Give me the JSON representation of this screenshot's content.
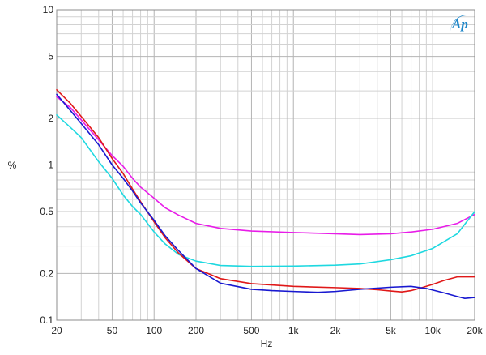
{
  "chart_data": {
    "type": "line",
    "title": "",
    "xlabel": "Hz",
    "ylabel": "%",
    "x_scale": "log",
    "y_scale": "log",
    "xlim": [
      20,
      20000
    ],
    "ylim": [
      0.1,
      10
    ],
    "x_ticks": [
      {
        "value": 20,
        "label": "20"
      },
      {
        "value": 50,
        "label": "50"
      },
      {
        "value": 100,
        "label": "100"
      },
      {
        "value": 200,
        "label": "200"
      },
      {
        "value": 500,
        "label": "500"
      },
      {
        "value": 1000,
        "label": "1k"
      },
      {
        "value": 2000,
        "label": "2k"
      },
      {
        "value": 5000,
        "label": "5k"
      },
      {
        "value": 10000,
        "label": "10k"
      },
      {
        "value": 20000,
        "label": "20k"
      }
    ],
    "y_ticks": [
      {
        "value": 0.1,
        "label": "0.1"
      },
      {
        "value": 0.2,
        "label": "0.2"
      },
      {
        "value": 0.5,
        "label": "0.5"
      },
      {
        "value": 1,
        "label": "1"
      },
      {
        "value": 2,
        "label": "2"
      },
      {
        "value": 5,
        "label": "5"
      },
      {
        "value": 10,
        "label": "10"
      }
    ],
    "grid": true,
    "legend": "none",
    "logo_text": "Ap",
    "series": [
      {
        "color": "#e81ce8",
        "points": [
          [
            20,
            2.75
          ],
          [
            25,
            2.35
          ],
          [
            30,
            1.95
          ],
          [
            40,
            1.45
          ],
          [
            50,
            1.15
          ],
          [
            60,
            0.98
          ],
          [
            70,
            0.82
          ],
          [
            80,
            0.72
          ],
          [
            100,
            0.61
          ],
          [
            120,
            0.53
          ],
          [
            150,
            0.475
          ],
          [
            200,
            0.42
          ],
          [
            300,
            0.39
          ],
          [
            500,
            0.375
          ],
          [
            1000,
            0.367
          ],
          [
            2000,
            0.36
          ],
          [
            3000,
            0.356
          ],
          [
            5000,
            0.36
          ],
          [
            7000,
            0.37
          ],
          [
            10000,
            0.385
          ],
          [
            15000,
            0.42
          ],
          [
            20000,
            0.48
          ]
        ]
      },
      {
        "color": "#1ed8e0",
        "points": [
          [
            20,
            2.1
          ],
          [
            25,
            1.75
          ],
          [
            30,
            1.5
          ],
          [
            40,
            1.05
          ],
          [
            50,
            0.82
          ],
          [
            60,
            0.64
          ],
          [
            70,
            0.54
          ],
          [
            80,
            0.48
          ],
          [
            100,
            0.37
          ],
          [
            120,
            0.31
          ],
          [
            150,
            0.265
          ],
          [
            200,
            0.24
          ],
          [
            300,
            0.225
          ],
          [
            500,
            0.222
          ],
          [
            1000,
            0.223
          ],
          [
            2000,
            0.226
          ],
          [
            3000,
            0.23
          ],
          [
            5000,
            0.245
          ],
          [
            7000,
            0.26
          ],
          [
            10000,
            0.29
          ],
          [
            15000,
            0.36
          ],
          [
            20000,
            0.5
          ]
        ]
      },
      {
        "color": "#e01818",
        "points": [
          [
            20,
            3.05
          ],
          [
            25,
            2.5
          ],
          [
            30,
            2.05
          ],
          [
            40,
            1.5
          ],
          [
            50,
            1.1
          ],
          [
            60,
            0.88
          ],
          [
            70,
            0.7
          ],
          [
            80,
            0.58
          ],
          [
            100,
            0.43
          ],
          [
            120,
            0.34
          ],
          [
            150,
            0.27
          ],
          [
            200,
            0.215
          ],
          [
            300,
            0.185
          ],
          [
            500,
            0.172
          ],
          [
            1000,
            0.165
          ],
          [
            2000,
            0.162
          ],
          [
            3000,
            0.16
          ],
          [
            4000,
            0.157
          ],
          [
            5000,
            0.154
          ],
          [
            6000,
            0.152
          ],
          [
            7000,
            0.155
          ],
          [
            8000,
            0.16
          ],
          [
            10000,
            0.17
          ],
          [
            12000,
            0.18
          ],
          [
            15000,
            0.19
          ],
          [
            20000,
            0.19
          ]
        ]
      },
      {
        "color": "#1818d0",
        "points": [
          [
            20,
            2.85
          ],
          [
            25,
            2.25
          ],
          [
            30,
            1.85
          ],
          [
            40,
            1.35
          ],
          [
            50,
            1.0
          ],
          [
            60,
            0.82
          ],
          [
            70,
            0.68
          ],
          [
            80,
            0.57
          ],
          [
            100,
            0.44
          ],
          [
            120,
            0.35
          ],
          [
            150,
            0.28
          ],
          [
            200,
            0.215
          ],
          [
            300,
            0.173
          ],
          [
            500,
            0.158
          ],
          [
            700,
            0.155
          ],
          [
            1000,
            0.153
          ],
          [
            1500,
            0.151
          ],
          [
            2000,
            0.153
          ],
          [
            3000,
            0.158
          ],
          [
            5000,
            0.163
          ],
          [
            7000,
            0.165
          ],
          [
            9000,
            0.16
          ],
          [
            12000,
            0.15
          ],
          [
            15000,
            0.142
          ],
          [
            17000,
            0.138
          ],
          [
            20000,
            0.14
          ]
        ]
      }
    ]
  }
}
